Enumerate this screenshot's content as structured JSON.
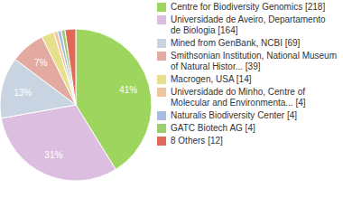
{
  "chart_data": {
    "type": "pie",
    "categories": [
      "Centre for Biodiversity Genomics [218]",
      "Universidade de Aveiro, Departamento de Biologia [164]",
      "Mined from GenBank, NCBI [69]",
      "Smithsonian Institution, National Museum of Natural Histor... [39]",
      "Macrogen, USA [14]",
      "Universidade do Minho, Centre of Molecular and Environmenta... [4]",
      "Naturalis Biodiversity Center [4]",
      "GATC Biotech AG [4]",
      "8 Others [12]"
    ],
    "values": [
      41.3,
      31.1,
      13.1,
      7.4,
      2.7,
      0.8,
      0.8,
      0.8,
      2.3
    ],
    "value_labels": [
      "41%",
      "31%",
      "13%",
      "7%",
      null,
      null,
      null,
      null,
      null
    ],
    "data_labels": true,
    "legend": "right",
    "colors": [
      "#9dd55e",
      "#dcbfe0",
      "#c8d4e2",
      "#e2aaa1",
      "#e6e08c",
      "#f0c49c",
      "#a8bcdc",
      "#9ccf72",
      "#e06a58"
    ]
  }
}
